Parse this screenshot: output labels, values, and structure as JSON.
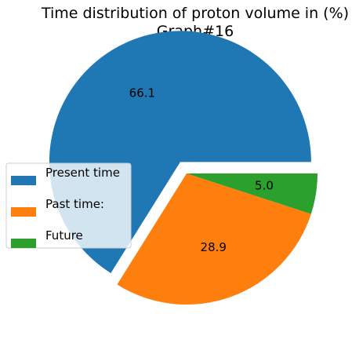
{
  "chart_data": {
    "type": "pie",
    "title": "Time distribution of proton volume in (%)",
    "subtitle": "Graph#16",
    "categories": [
      "Present time",
      "Past time:",
      "Future"
    ],
    "values": [
      66.1,
      28.9,
      5.0
    ],
    "value_labels": [
      "66.1",
      "28.9",
      "5.0"
    ],
    "colors": [
      "#1f77b4",
      "#ff7f0e",
      "#2ca02c"
    ],
    "explode": [
      0.1,
      0,
      0
    ],
    "start_angle_deg": 0,
    "direction": "counterclockwise",
    "legend_placement": "center-left"
  }
}
